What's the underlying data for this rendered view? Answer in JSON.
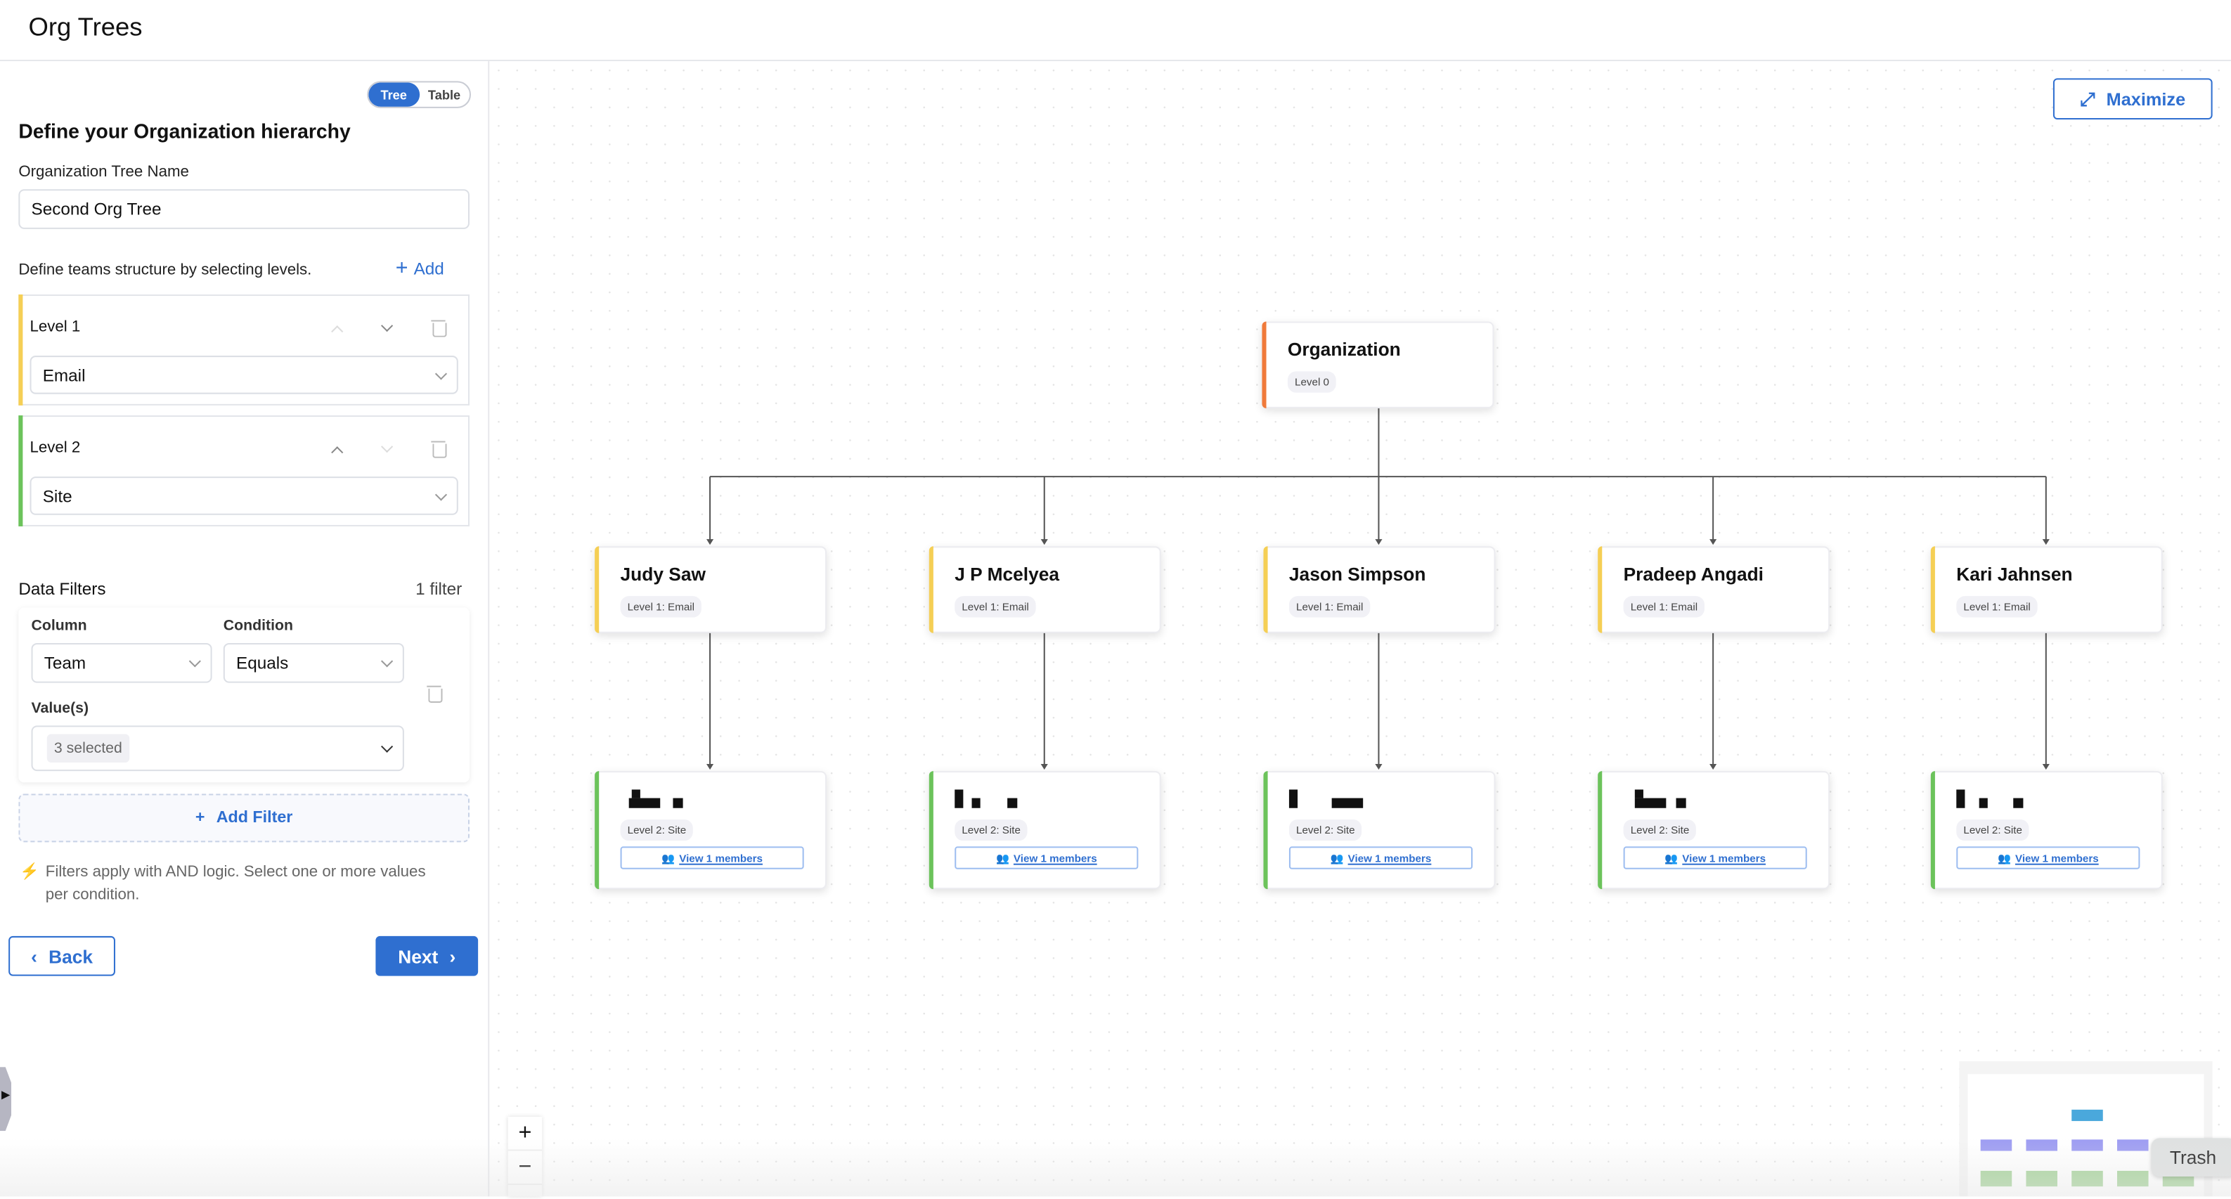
{
  "header": {
    "title": "Org Trees"
  },
  "view_toggle": {
    "options": [
      "Tree",
      "Table"
    ],
    "selected": "Tree"
  },
  "form": {
    "heading": "Define your Organization hierarchy",
    "tree_name_label": "Organization Tree Name",
    "tree_name_value": "Second Org Tree",
    "levels_hint": "Define teams structure by selecting levels.",
    "add_label": "Add",
    "levels": [
      {
        "label": "Level 1",
        "value": "Email",
        "color": "#f5cf55"
      },
      {
        "label": "Level 2",
        "value": "Site",
        "color": "#6cc35b"
      }
    ]
  },
  "filters": {
    "title": "Data Filters",
    "count": "1 filter",
    "column_label": "Column",
    "column_value": "Team",
    "condition_label": "Condition",
    "condition_value": "Equals",
    "values_label": "Value(s)",
    "values_value": "3 selected",
    "add_filter_label": "Add Filter",
    "info": "Filters apply with AND logic. Select one or more values per condition."
  },
  "nav": {
    "back": "Back",
    "next": "Next"
  },
  "canvas": {
    "maximize_label": "Maximize",
    "root": {
      "name": "Organization",
      "level": "Level 0",
      "color": "#f07a3a"
    },
    "level1": [
      {
        "name": "Judy Saw",
        "level": "Level 1: Email"
      },
      {
        "name": "J P Mcelyea",
        "level": "Level 1: Email"
      },
      {
        "name": "Jason Simpson",
        "level": "Level 1: Email"
      },
      {
        "name": "Pradeep Angadi",
        "level": "Level 1: Email"
      },
      {
        "name": "Kari Jahnsen",
        "level": "Level 1: Email"
      }
    ],
    "level2": [
      {
        "level": "Level 2: Site",
        "members": "View 1 members"
      },
      {
        "level": "Level 2: Site",
        "members": "View 1 members"
      },
      {
        "level": "Level 2: Site",
        "members": "View 1 members"
      },
      {
        "level": "Level 2: Site",
        "members": "View 1 members"
      },
      {
        "level": "Level 2: Site",
        "members": "View 1 members"
      }
    ],
    "zoom_in": "+",
    "zoom_out": "−",
    "minimap_colors": {
      "root": "#4aa8dc",
      "level1": "#9d9cf2",
      "level2": "#a6d39a"
    }
  },
  "tooltip": {
    "text": "Trash"
  }
}
